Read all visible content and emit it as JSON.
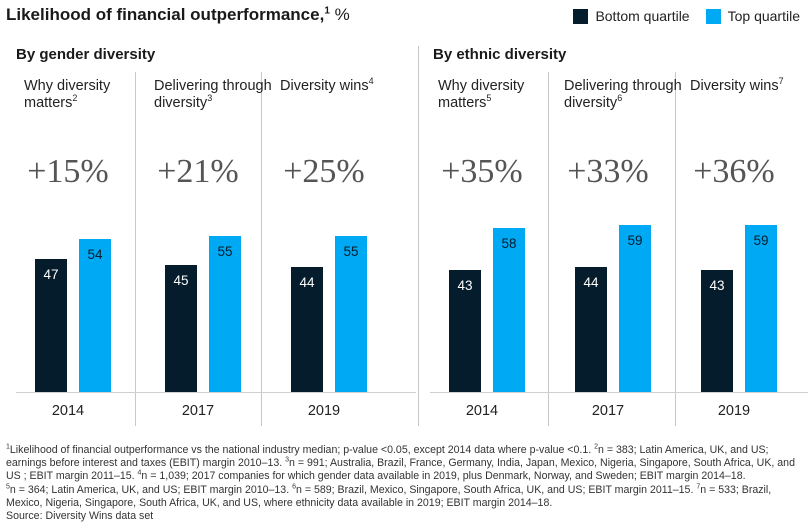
{
  "title": {
    "text": "Likelihood of financial outperformance,",
    "sup": "1",
    "unit": "%"
  },
  "legend": [
    {
      "label": "Bottom quartile",
      "color": "#051c2c"
    },
    {
      "label": "Top quartile",
      "color": "#00a9f4"
    }
  ],
  "groups": [
    {
      "title": "By gender diversity"
    },
    {
      "title": "By ethnic diversity"
    }
  ],
  "chart_data": {
    "type": "bar",
    "title": "Likelihood of financial outperformance, %",
    "series_names": [
      "Bottom quartile",
      "Top quartile"
    ],
    "ylim": [
      0,
      70
    ],
    "grid": false,
    "legend_position": "top-right",
    "panels": [
      {
        "group": "By gender diversity",
        "study": "Why diversity matters",
        "study_sup": "2",
        "uplift": "+15%",
        "year": "2014",
        "bottom": 47,
        "top": 54
      },
      {
        "group": "By gender diversity",
        "study": "Delivering through diversity",
        "study_sup": "3",
        "uplift": "+21%",
        "year": "2017",
        "bottom": 45,
        "top": 55
      },
      {
        "group": "By gender diversity",
        "study": "Diversity wins",
        "study_sup": "4",
        "uplift": "+25%",
        "year": "2019",
        "bottom": 44,
        "top": 55
      },
      {
        "group": "By ethnic diversity",
        "study": "Why diversity matters",
        "study_sup": "5",
        "uplift": "+35%",
        "year": "2014",
        "bottom": 43,
        "top": 58
      },
      {
        "group": "By ethnic diversity",
        "study": "Delivering through diversity",
        "study_sup": "6",
        "uplift": "+33%",
        "year": "2017",
        "bottom": 44,
        "top": 59
      },
      {
        "group": "By ethnic diversity",
        "study": "Diversity wins",
        "study_sup": "7",
        "uplift": "+36%",
        "year": "2019",
        "bottom": 43,
        "top": 59
      }
    ]
  },
  "footnotes": [
    {
      "sup": "1",
      "text": "Likelihood of financial outperformance vs the national industry median; p-value <0.05, except 2014 data where p-value <0.1. "
    },
    {
      "sup": "2",
      "text": "n = 383; Latin America, UK, and US; earnings before interest and taxes (EBIT) margin 2010–13. "
    },
    {
      "sup": "3",
      "text": "n = 991; Australia, Brazil, France, Germany, India, Japan, Mexico, Nigeria, Singapore, South Africa, UK, and US ; EBIT margin 2011–15. "
    },
    {
      "sup": "4",
      "text": "n = 1,039; 2017 companies for which gender data available in 2019, plus Denmark, Norway, and Sweden;  EBIT margin 2014–18. "
    },
    {
      "sup": "5",
      "text": "n = 364; Latin America, UK, and US; EBIT margin 2010–13. "
    },
    {
      "sup": "6",
      "text": "n = 589; Brazil, Mexico, Singapore, South Africa, UK, and US; EBIT margin 2011–15. "
    },
    {
      "sup": "7",
      "text": "n = 533; Brazil, Mexico, Nigeria, Singapore, South Africa, UK, and US, where ethnicity data available in 2019; EBIT margin 2014–18."
    }
  ],
  "source": "Source: Diversity Wins data set"
}
